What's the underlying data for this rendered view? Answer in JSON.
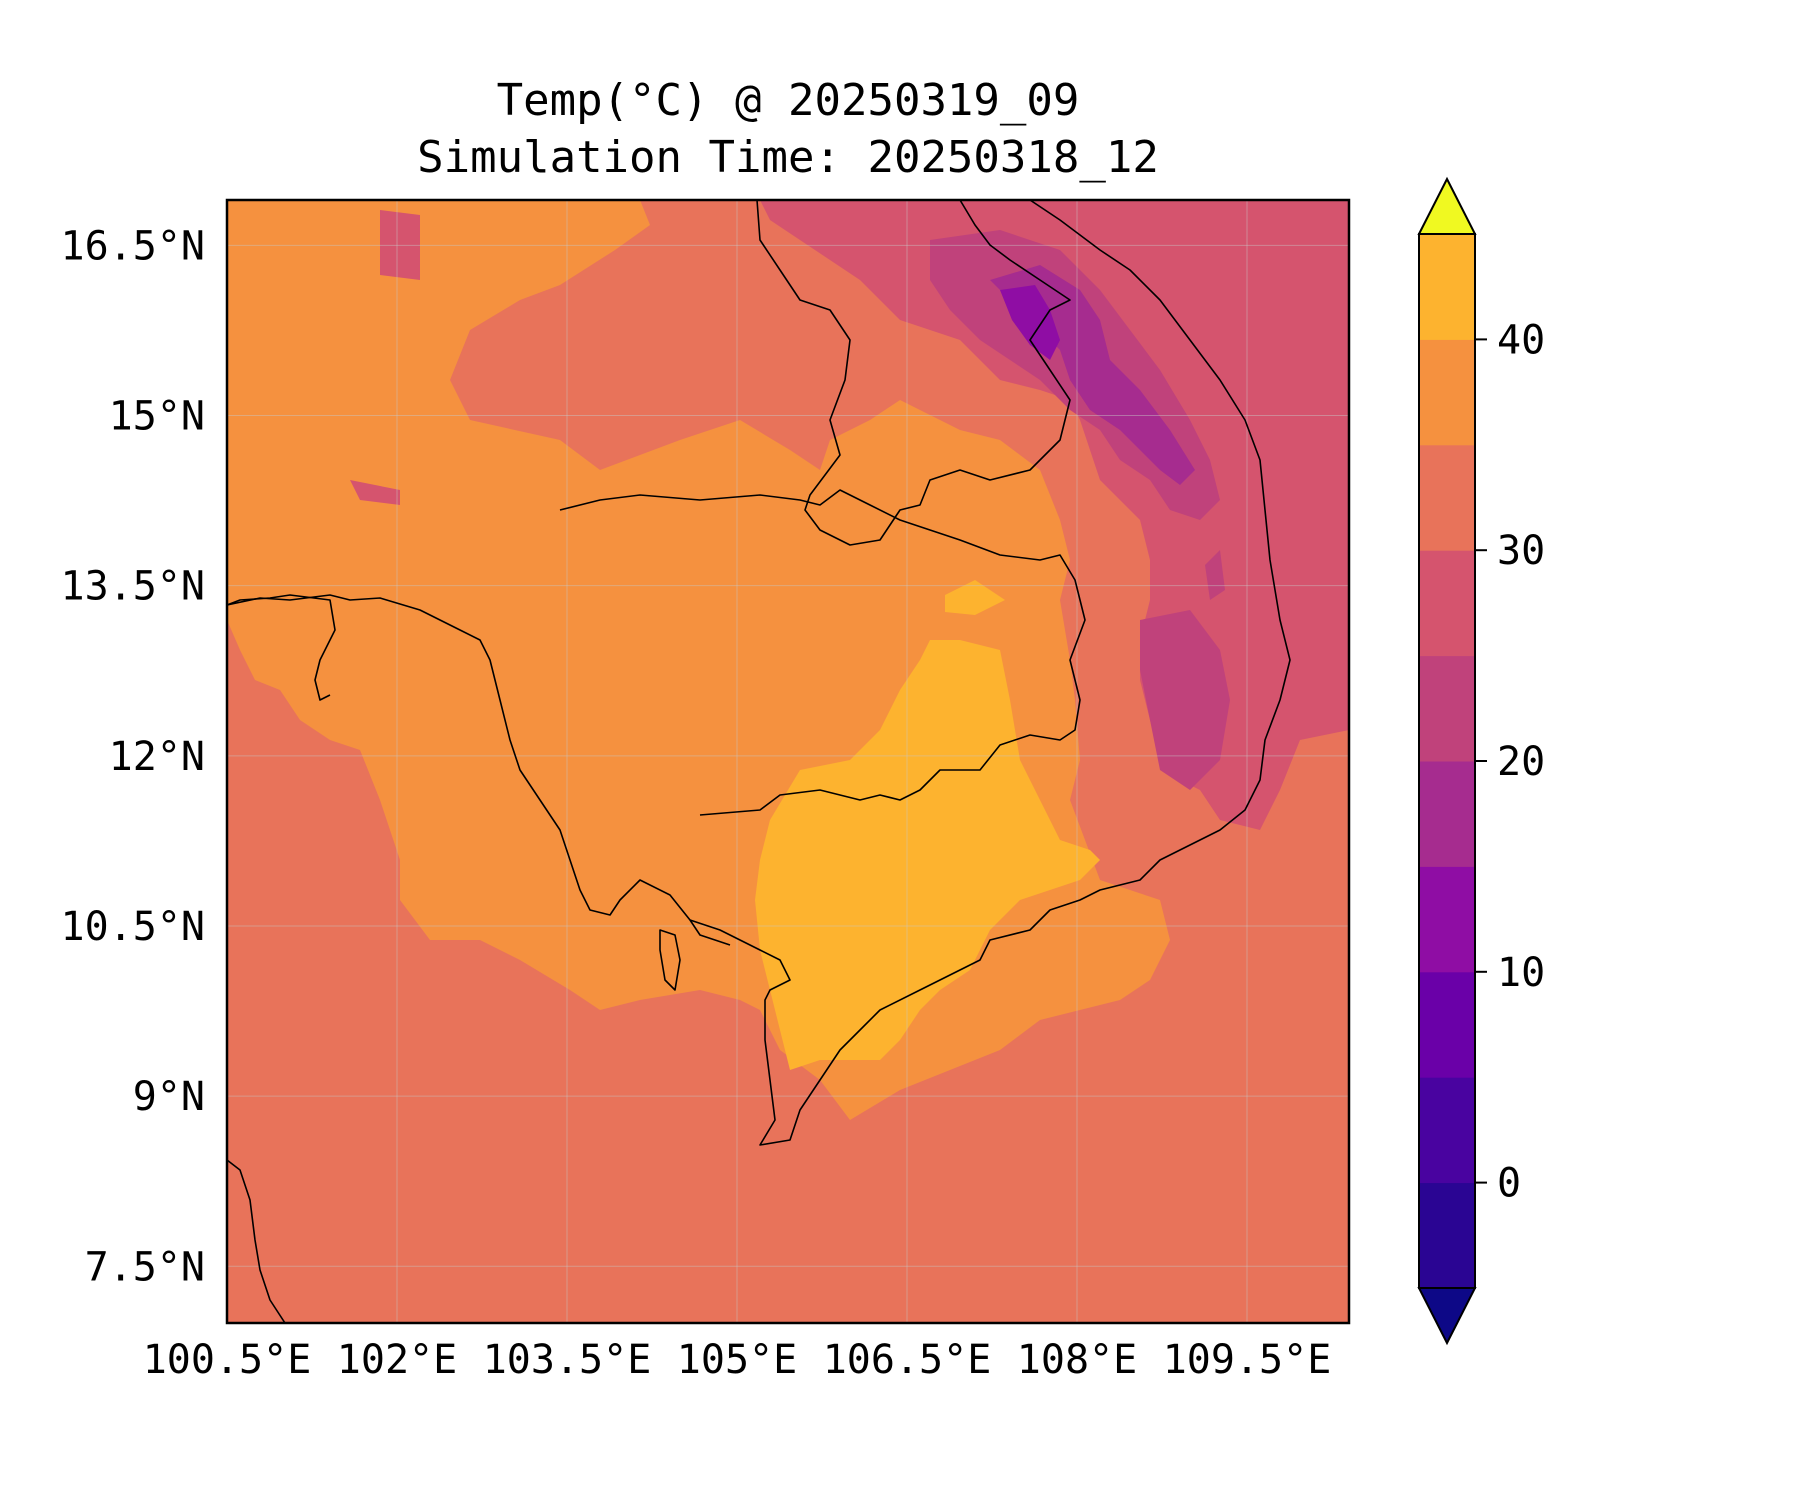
{
  "title": {
    "line1": "Temp(°C) @ 20250319_09",
    "line2": "Simulation Time: 20250318_12"
  },
  "map": {
    "lon_range": [
      100.5,
      110.4
    ],
    "lat_range": [
      7.0,
      16.9
    ],
    "lon_ticks": [
      {
        "value": 100.5,
        "label": "100.5°E"
      },
      {
        "value": 102.0,
        "label": "102°E"
      },
      {
        "value": 103.5,
        "label": "103.5°E"
      },
      {
        "value": 105.0,
        "label": "105°E"
      },
      {
        "value": 106.5,
        "label": "106.5°E"
      },
      {
        "value": 108.0,
        "label": "108°E"
      },
      {
        "value": 109.5,
        "label": "109.5°E"
      }
    ],
    "lat_ticks": [
      {
        "value": 16.5,
        "label": "16.5°N"
      },
      {
        "value": 15.0,
        "label": "15°N"
      },
      {
        "value": 13.5,
        "label": "13.5°N"
      },
      {
        "value": 12.0,
        "label": "12°N"
      },
      {
        "value": 10.5,
        "label": "10.5°N"
      },
      {
        "value": 9.0,
        "label": "9°N"
      },
      {
        "value": 7.5,
        "label": "7.5°N"
      }
    ],
    "gridlines": true,
    "colormap": "plasma",
    "background_band_color": "#e8735a"
  },
  "colorbar": {
    "levels": [
      -5,
      0,
      5,
      10,
      15,
      20,
      25,
      30,
      35,
      40,
      45
    ],
    "band_colors": [
      "#2a0593",
      "#4903a0",
      "#6a00a8",
      "#8f0da4",
      "#a62c8f",
      "#c0427b",
      "#d5546e",
      "#e8735a",
      "#f5913f",
      "#fdb32f",
      "#f2e126"
    ],
    "under_color": "#0d0887",
    "over_color": "#f0f921",
    "extend": "both",
    "tick_labels": [
      {
        "value": 0,
        "label": "0"
      },
      {
        "value": 10,
        "label": "10"
      },
      {
        "value": 20,
        "label": "20"
      },
      {
        "value": 30,
        "label": "30"
      },
      {
        "value": 40,
        "label": "40"
      }
    ]
  }
}
